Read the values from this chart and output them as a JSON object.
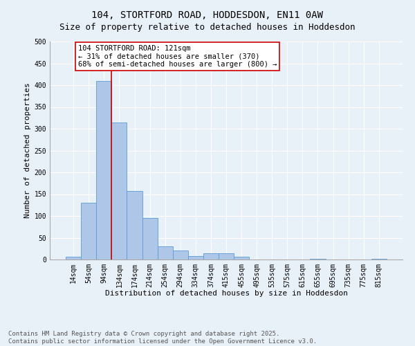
{
  "title": "104, STORTFORD ROAD, HODDESDON, EN11 0AW",
  "subtitle": "Size of property relative to detached houses in Hoddesdon",
  "xlabel": "Distribution of detached houses by size in Hoddesdon",
  "ylabel": "Number of detached properties",
  "bar_color": "#aec6e8",
  "bar_edge_color": "#5b9bd5",
  "background_color": "#e8f0f8",
  "grid_color": "#ffffff",
  "bin_labels": [
    "14sqm",
    "54sqm",
    "94sqm",
    "134sqm",
    "174sqm",
    "214sqm",
    "254sqm",
    "294sqm",
    "334sqm",
    "374sqm",
    "415sqm",
    "455sqm",
    "495sqm",
    "535sqm",
    "575sqm",
    "615sqm",
    "655sqm",
    "695sqm",
    "735sqm",
    "775sqm",
    "815sqm"
  ],
  "bar_values": [
    6,
    130,
    410,
    315,
    157,
    95,
    30,
    20,
    8,
    15,
    15,
    6,
    0,
    0,
    0,
    0,
    2,
    0,
    0,
    0,
    2
  ],
  "vline_color": "#cc0000",
  "annotation_text": "104 STORTFORD ROAD: 121sqm\n← 31% of detached houses are smaller (370)\n68% of semi-detached houses are larger (800) →",
  "annotation_box_color": "#ffffff",
  "annotation_box_edge": "#cc0000",
  "ylim": [
    0,
    500
  ],
  "yticks": [
    0,
    50,
    100,
    150,
    200,
    250,
    300,
    350,
    400,
    450,
    500
  ],
  "footnote1": "Contains HM Land Registry data © Crown copyright and database right 2025.",
  "footnote2": "Contains public sector information licensed under the Open Government Licence v3.0.",
  "title_fontsize": 10,
  "subtitle_fontsize": 9,
  "axis_label_fontsize": 8,
  "tick_fontsize": 7,
  "annotation_fontsize": 7.5,
  "footnote_fontsize": 6.5
}
